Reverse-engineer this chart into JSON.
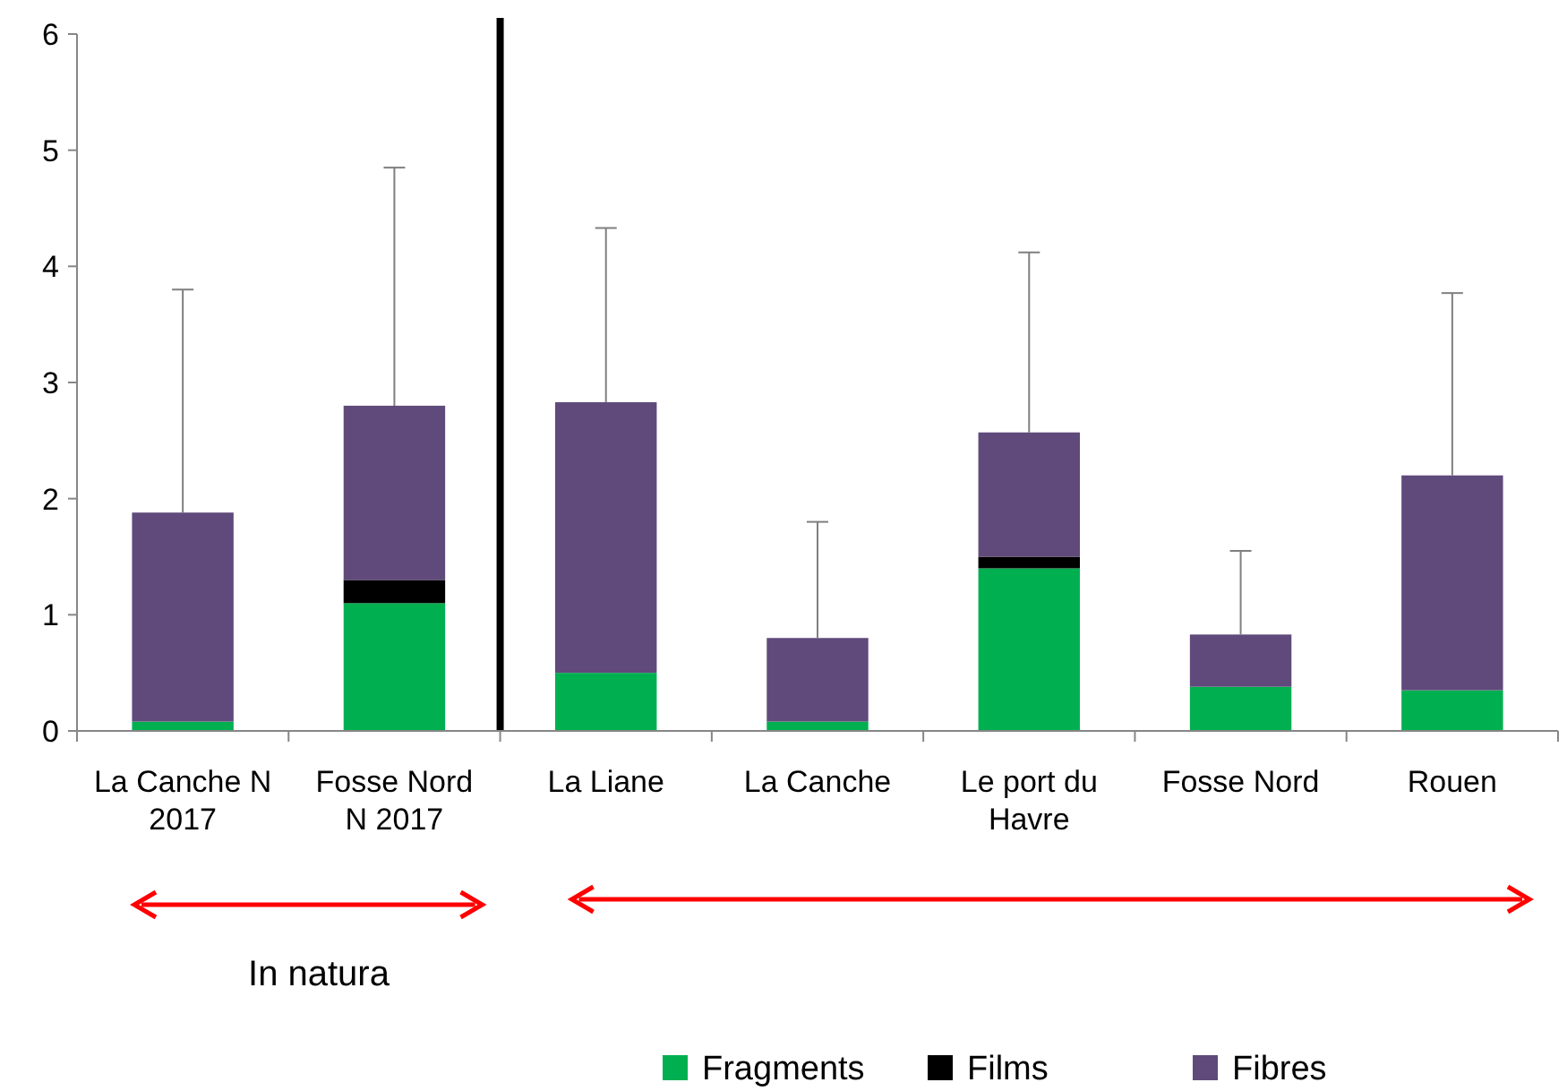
{
  "chart_data": {
    "type": "bar",
    "stacked": true,
    "categories": [
      "La Canche N 2017",
      "Fosse Nord N 2017",
      "La Liane",
      "La Canche",
      "Le port du Havre",
      "Fosse Nord",
      "Rouen"
    ],
    "series": [
      {
        "name": "Fragments",
        "color": "#00b050",
        "values": [
          0.08,
          1.1,
          0.5,
          0.08,
          1.4,
          0.38,
          0.35
        ]
      },
      {
        "name": "Films",
        "color": "#000000",
        "values": [
          0,
          0.2,
          0,
          0,
          0.1,
          0,
          0
        ]
      },
      {
        "name": "Fibres",
        "color": "#604a7b",
        "values": [
          1.8,
          1.5,
          2.33,
          0.72,
          1.07,
          0.45,
          1.85
        ],
        "errors": [
          [
            1.88,
            3.8
          ],
          [
            2.8,
            4.85
          ],
          [
            2.83,
            4.33
          ],
          [
            0.8,
            1.8
          ],
          [
            2.57,
            4.12
          ],
          [
            0.83,
            1.55
          ],
          [
            2.2,
            3.77
          ]
        ]
      }
    ],
    "ylim": [
      0,
      6
    ],
    "yticks": [
      0,
      1,
      2,
      3,
      4,
      5,
      6
    ],
    "grid": false,
    "legend": "bottom",
    "annotations": [
      "In natura"
    ]
  }
}
